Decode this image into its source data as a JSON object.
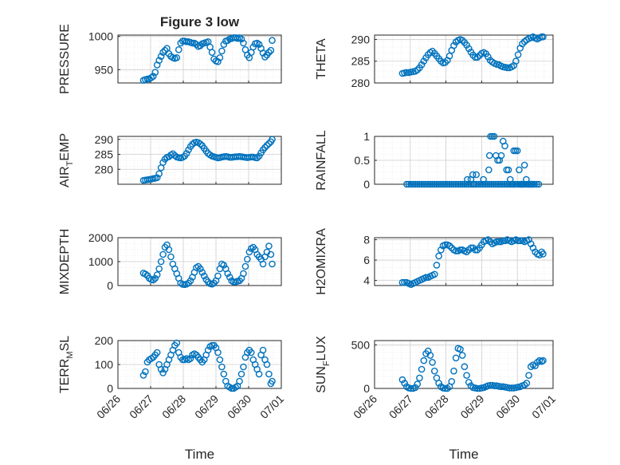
{
  "figure": {
    "title": "Figure 3 low",
    "marker_color": "#0072BD",
    "grid": true,
    "x_ticks": [
      "06/26",
      "06/27",
      "06/28",
      "06/29",
      "06/30",
      "07/01"
    ]
  },
  "chart_data": [
    {
      "type": "scatter",
      "title": "Figure 3 low",
      "ylabel": "PRESSURE",
      "xlabel": "",
      "ylim": [
        930,
        1002
      ],
      "yticks": [
        950,
        1000
      ],
      "x": [
        0.78,
        0.84,
        0.9,
        0.96,
        1.02,
        1.08,
        1.14,
        1.2,
        1.26,
        1.32,
        1.38,
        1.44,
        1.5,
        1.56,
        1.62,
        1.68,
        1.74,
        1.8,
        1.86,
        1.92,
        1.98,
        2.04,
        2.1,
        2.16,
        2.22,
        2.28,
        2.34,
        2.4,
        2.46,
        2.52,
        2.58,
        2.64,
        2.7,
        2.76,
        2.82,
        2.88,
        2.94,
        3.0,
        3.06,
        3.12,
        3.18,
        3.24,
        3.3,
        3.36,
        3.42,
        3.48,
        3.54,
        3.6,
        3.66,
        3.72,
        3.78,
        3.84,
        3.9,
        3.96,
        4.02,
        4.08,
        4.14,
        4.2,
        4.26,
        4.32,
        4.38,
        4.44,
        4.5,
        4.56,
        4.62,
        4.68,
        4.72
      ],
      "y": [
        934,
        935,
        936,
        936,
        938,
        940,
        946,
        957,
        964,
        970,
        976,
        979,
        982,
        974,
        970,
        968,
        967,
        968,
        980,
        990,
        993,
        993,
        992,
        992,
        991,
        990,
        990,
        988,
        985,
        986,
        989,
        990,
        991,
        992,
        984,
        976,
        966,
        963,
        962,
        968,
        978,
        988,
        993,
        994,
        996,
        997,
        998,
        998,
        997,
        998,
        996,
        990,
        980,
        972,
        968,
        976,
        984,
        989,
        990,
        988,
        982,
        975,
        969,
        972,
        976,
        979,
        994
      ]
    },
    {
      "type": "scatter",
      "ylabel": "THETA",
      "xlabel": "",
      "ylim": [
        280,
        291
      ],
      "yticks": [
        280,
        285,
        290
      ],
      "x": [
        0.78,
        0.84,
        0.9,
        0.96,
        1.02,
        1.08,
        1.14,
        1.2,
        1.26,
        1.32,
        1.38,
        1.44,
        1.5,
        1.56,
        1.62,
        1.68,
        1.74,
        1.8,
        1.86,
        1.92,
        1.98,
        2.04,
        2.1,
        2.16,
        2.22,
        2.28,
        2.34,
        2.4,
        2.46,
        2.52,
        2.58,
        2.64,
        2.7,
        2.76,
        2.82,
        2.88,
        2.94,
        3.0,
        3.06,
        3.12,
        3.18,
        3.24,
        3.3,
        3.36,
        3.42,
        3.48,
        3.54,
        3.6,
        3.66,
        3.72,
        3.78,
        3.84,
        3.9,
        3.96,
        4.02,
        4.08,
        4.14,
        4.2,
        4.26,
        4.32,
        4.38,
        4.44,
        4.5,
        4.56,
        4.62,
        4.68,
        4.72
      ],
      "y": [
        282.2,
        282.3,
        282.4,
        282.4,
        282.5,
        282.6,
        282.7,
        283.0,
        283.5,
        284.2,
        285.0,
        285.8,
        286.5,
        287.0,
        287.3,
        286.8,
        286.2,
        285.6,
        285.0,
        284.6,
        284.7,
        285.2,
        286.2,
        287.5,
        288.6,
        289.4,
        289.8,
        290.0,
        289.8,
        289.3,
        288.7,
        287.9,
        287.1,
        286.4,
        285.9,
        285.9,
        286.3,
        286.8,
        287.0,
        286.7,
        286.0,
        285.2,
        284.8,
        284.5,
        284.3,
        284.2,
        283.9,
        283.7,
        283.6,
        283.5,
        283.5,
        283.7,
        284.0,
        285.0,
        286.5,
        288.0,
        289.0,
        289.5,
        289.9,
        290.2,
        290.4,
        290.6,
        290.3,
        290.1,
        290.4,
        290.6,
        290.6
      ]
    },
    {
      "type": "scatter",
      "ylabel": "AIR_TEMP",
      "xlabel": "",
      "ylim": [
        275,
        291
      ],
      "yticks": [
        280,
        285,
        290
      ],
      "x": [
        0.78,
        0.84,
        0.9,
        0.96,
        1.02,
        1.08,
        1.14,
        1.2,
        1.26,
        1.32,
        1.38,
        1.44,
        1.5,
        1.56,
        1.62,
        1.68,
        1.74,
        1.8,
        1.86,
        1.92,
        1.98,
        2.04,
        2.1,
        2.16,
        2.22,
        2.28,
        2.34,
        2.4,
        2.46,
        2.52,
        2.58,
        2.64,
        2.7,
        2.76,
        2.82,
        2.88,
        2.94,
        3.0,
        3.06,
        3.12,
        3.18,
        3.24,
        3.3,
        3.36,
        3.42,
        3.48,
        3.54,
        3.6,
        3.66,
        3.72,
        3.78,
        3.84,
        3.9,
        3.96,
        4.02,
        4.08,
        4.14,
        4.2,
        4.26,
        4.32,
        4.38,
        4.44,
        4.5,
        4.56,
        4.62,
        4.68,
        4.72
      ],
      "y": [
        276.3,
        276.4,
        276.5,
        276.6,
        276.7,
        276.9,
        277.0,
        277.2,
        278.5,
        280.5,
        282.3,
        283.4,
        284.0,
        284.2,
        284.8,
        285.2,
        284.6,
        284.1,
        283.9,
        283.8,
        284.0,
        284.4,
        285.3,
        286.5,
        287.6,
        288.4,
        288.9,
        289.1,
        288.9,
        288.5,
        287.9,
        287.0,
        286.1,
        285.3,
        284.8,
        284.4,
        284.2,
        284.0,
        283.8,
        283.9,
        284.1,
        284.2,
        284.3,
        284.2,
        284.0,
        284.0,
        284.1,
        284.2,
        284.2,
        284.3,
        284.2,
        284.1,
        284.0,
        283.9,
        284.0,
        284.1,
        284.1,
        283.9,
        283.8,
        284.4,
        285.5,
        286.5,
        287.3,
        288.0,
        288.6,
        289.2,
        290.0
      ]
    },
    {
      "type": "scatter",
      "ylabel": "RAINFALL",
      "xlabel": "",
      "ylim": [
        0,
        1
      ],
      "yticks": [
        0,
        0.5,
        1
      ],
      "x": [
        0.9,
        0.96,
        1.02,
        1.08,
        1.14,
        1.2,
        1.26,
        1.32,
        1.38,
        1.44,
        1.5,
        1.56,
        1.62,
        1.68,
        1.74,
        1.8,
        1.86,
        1.92,
        1.98,
        2.04,
        2.1,
        2.16,
        2.22,
        2.28,
        2.34,
        2.4,
        2.46,
        2.52,
        2.58,
        2.64,
        2.7,
        2.76,
        2.8,
        2.86,
        2.92,
        2.98,
        3.04,
        3.1,
        3.16,
        3.22,
        3.28,
        3.34,
        3.4,
        3.46,
        3.52,
        3.58,
        3.64,
        3.7,
        3.76,
        3.82,
        3.88,
        3.94,
        4.0,
        4.06,
        4.12,
        4.18,
        4.24,
        4.3,
        4.36,
        4.42,
        4.48,
        4.54,
        4.6,
        2.6,
        2.7,
        2.75,
        2.85,
        3.05,
        3.2,
        3.22,
        3.25,
        3.3,
        3.35,
        3.4,
        3.45,
        3.5,
        3.55,
        3.6,
        3.65,
        3.7,
        3.75,
        3.8,
        3.85,
        3.9,
        3.95,
        4.0,
        4.05,
        4.1,
        4.15,
        4.2,
        4.25,
        4.3,
        4.35,
        4.4
      ],
      "y": [
        0,
        0,
        0,
        0,
        0,
        0,
        0,
        0,
        0,
        0,
        0,
        0,
        0,
        0,
        0,
        0,
        0,
        0,
        0,
        0,
        0,
        0,
        0,
        0,
        0,
        0,
        0,
        0,
        0,
        0,
        0,
        0,
        0,
        0,
        0,
        0,
        0,
        0,
        0,
        0,
        0,
        0,
        0,
        0,
        0,
        0,
        0,
        0,
        0,
        0,
        0,
        0,
        0,
        0,
        0,
        0,
        0,
        0,
        0,
        0,
        0,
        0,
        0,
        0.1,
        0.1,
        0.2,
        0.2,
        0.1,
        0.3,
        0.6,
        1,
        1,
        1,
        0.6,
        0.5,
        0.5,
        0.6,
        0.9,
        0.8,
        0.3,
        0.3,
        0.1,
        0,
        0.7,
        0.7,
        0.7,
        0.3,
        0,
        0,
        0.4,
        0.1,
        0,
        0,
        0
      ]
    },
    {
      "type": "scatter",
      "ylabel": "MIXDEPTH",
      "xlabel": "",
      "ylim": [
        0,
        2000
      ],
      "yticks": [
        0,
        1000,
        2000
      ],
      "x": [
        0.78,
        0.84,
        0.9,
        0.96,
        1.02,
        1.08,
        1.14,
        1.2,
        1.26,
        1.32,
        1.38,
        1.44,
        1.5,
        1.56,
        1.62,
        1.68,
        1.74,
        1.8,
        1.86,
        1.92,
        1.98,
        2.04,
        2.1,
        2.16,
        2.22,
        2.28,
        2.34,
        2.4,
        2.46,
        2.52,
        2.58,
        2.64,
        2.7,
        2.76,
        2.82,
        2.88,
        2.94,
        3.0,
        3.06,
        3.12,
        3.18,
        3.24,
        3.3,
        3.36,
        3.42,
        3.48,
        3.54,
        3.6,
        3.66,
        3.72,
        3.78,
        3.84,
        3.9,
        3.96,
        4.02,
        4.08,
        4.14,
        4.2,
        4.26,
        4.32,
        4.38,
        4.44,
        4.5,
        4.56,
        4.62,
        4.68,
        4.72
      ],
      "y": [
        520,
        480,
        420,
        300,
        250,
        230,
        300,
        450,
        700,
        1000,
        1300,
        1600,
        1700,
        1500,
        1200,
        900,
        700,
        500,
        300,
        100,
        50,
        40,
        60,
        100,
        200,
        350,
        550,
        750,
        800,
        700,
        550,
        400,
        250,
        150,
        80,
        60,
        100,
        200,
        400,
        700,
        900,
        850,
        700,
        500,
        350,
        200,
        150,
        150,
        180,
        200,
        300,
        500,
        800,
        1100,
        1400,
        1550,
        1600,
        1500,
        1300,
        1200,
        1100,
        900,
        1200,
        1400,
        1650,
        1300,
        900
      ]
    },
    {
      "type": "scatter",
      "ylabel": "H2OMIXRA",
      "xlabel": "",
      "ylim": [
        3.5,
        8.2
      ],
      "yticks": [
        4,
        6,
        8
      ],
      "x": [
        0.78,
        0.84,
        0.9,
        0.96,
        1.02,
        1.08,
        1.14,
        1.2,
        1.26,
        1.32,
        1.38,
        1.44,
        1.5,
        1.56,
        1.62,
        1.68,
        1.74,
        1.8,
        1.86,
        1.92,
        1.98,
        2.04,
        2.1,
        2.16,
        2.22,
        2.28,
        2.34,
        2.4,
        2.46,
        2.52,
        2.58,
        2.64,
        2.7,
        2.76,
        2.82,
        2.88,
        2.94,
        3.0,
        3.06,
        3.12,
        3.18,
        3.24,
        3.3,
        3.36,
        3.42,
        3.48,
        3.54,
        3.6,
        3.66,
        3.72,
        3.78,
        3.84,
        3.9,
        3.96,
        4.02,
        4.08,
        4.14,
        4.2,
        4.26,
        4.32,
        4.38,
        4.44,
        4.5,
        4.56,
        4.62,
        4.68,
        4.72
      ],
      "y": [
        3.8,
        3.8,
        3.8,
        3.7,
        3.6,
        3.7,
        3.8,
        3.9,
        4.0,
        4.1,
        4.2,
        4.3,
        4.3,
        4.4,
        4.5,
        4.6,
        5.5,
        6.4,
        7.0,
        7.4,
        7.5,
        7.5,
        7.4,
        7.2,
        7.0,
        6.9,
        6.9,
        7.0,
        7.0,
        6.9,
        6.8,
        7.0,
        7.2,
        7.2,
        7.0,
        7.0,
        7.2,
        7.5,
        7.8,
        7.9,
        8.0,
        7.8,
        7.6,
        7.7,
        7.8,
        7.8,
        7.8,
        7.9,
        7.9,
        8.0,
        7.9,
        7.8,
        7.9,
        8.0,
        7.9,
        7.9,
        7.9,
        7.8,
        7.9,
        8.0,
        7.6,
        7.2,
        6.8,
        6.6,
        6.5,
        6.8,
        6.6
      ]
    },
    {
      "type": "scatter",
      "ylabel": "TERR_MSL",
      "xlabel": "Time",
      "ylim": [
        0,
        200
      ],
      "yticks": [
        0,
        100,
        200
      ],
      "x": [
        0.78,
        0.84,
        0.9,
        0.96,
        1.02,
        1.08,
        1.14,
        1.2,
        1.26,
        1.32,
        1.38,
        1.44,
        1.5,
        1.56,
        1.62,
        1.68,
        1.74,
        1.8,
        1.86,
        1.92,
        1.98,
        2.04,
        2.1,
        2.16,
        2.22,
        2.28,
        2.34,
        2.4,
        2.46,
        2.52,
        2.58,
        2.64,
        2.7,
        2.76,
        2.82,
        2.88,
        2.94,
        3.0,
        3.06,
        3.12,
        3.18,
        3.24,
        3.3,
        3.36,
        3.42,
        3.48,
        3.54,
        3.6,
        3.66,
        3.72,
        3.78,
        3.84,
        3.9,
        3.96,
        4.02,
        4.08,
        4.14,
        4.2,
        4.26,
        4.32,
        4.38,
        4.44,
        4.5,
        4.56,
        4.62,
        4.68,
        4.72
      ],
      "y": [
        55,
        70,
        110,
        120,
        125,
        130,
        140,
        150,
        100,
        80,
        65,
        80,
        100,
        120,
        140,
        160,
        180,
        190,
        150,
        130,
        120,
        120,
        125,
        120,
        125,
        140,
        145,
        140,
        130,
        120,
        110,
        120,
        140,
        160,
        175,
        180,
        180,
        170,
        150,
        120,
        90,
        60,
        30,
        10,
        5,
        0,
        0,
        5,
        10,
        30,
        60,
        90,
        130,
        150,
        160,
        150,
        120,
        100,
        80,
        60,
        140,
        160,
        120,
        100,
        60,
        20,
        30
      ]
    },
    {
      "type": "scatter",
      "ylabel": "SUN_FLUX",
      "xlabel": "Time",
      "ylim": [
        0,
        550
      ],
      "yticks": [
        0,
        500
      ],
      "x": [
        0.78,
        0.84,
        0.9,
        0.96,
        1.02,
        1.08,
        1.14,
        1.2,
        1.26,
        1.32,
        1.38,
        1.44,
        1.5,
        1.56,
        1.62,
        1.68,
        1.74,
        1.8,
        1.86,
        1.92,
        1.98,
        2.04,
        2.1,
        2.16,
        2.22,
        2.28,
        2.34,
        2.4,
        2.46,
        2.52,
        2.58,
        2.64,
        2.7,
        2.76,
        2.82,
        2.88,
        2.94,
        3.0,
        3.06,
        3.12,
        3.18,
        3.24,
        3.3,
        3.36,
        3.42,
        3.48,
        3.54,
        3.6,
        3.66,
        3.72,
        3.78,
        3.84,
        3.9,
        3.96,
        4.02,
        4.08,
        4.14,
        4.2,
        4.26,
        4.32,
        4.38,
        4.44,
        4.5,
        4.56,
        4.62,
        4.68,
        4.72
      ],
      "y": [
        100,
        60,
        20,
        5,
        0,
        0,
        10,
        50,
        120,
        220,
        320,
        400,
        430,
        380,
        300,
        200,
        120,
        60,
        20,
        5,
        0,
        0,
        20,
        80,
        200,
        350,
        460,
        450,
        380,
        250,
        150,
        70,
        30,
        10,
        5,
        0,
        0,
        5,
        10,
        20,
        30,
        35,
        35,
        30,
        30,
        25,
        20,
        20,
        15,
        10,
        5,
        5,
        5,
        10,
        15,
        20,
        30,
        40,
        60,
        150,
        250,
        270,
        260,
        300,
        320,
        310,
        320
      ]
    }
  ]
}
